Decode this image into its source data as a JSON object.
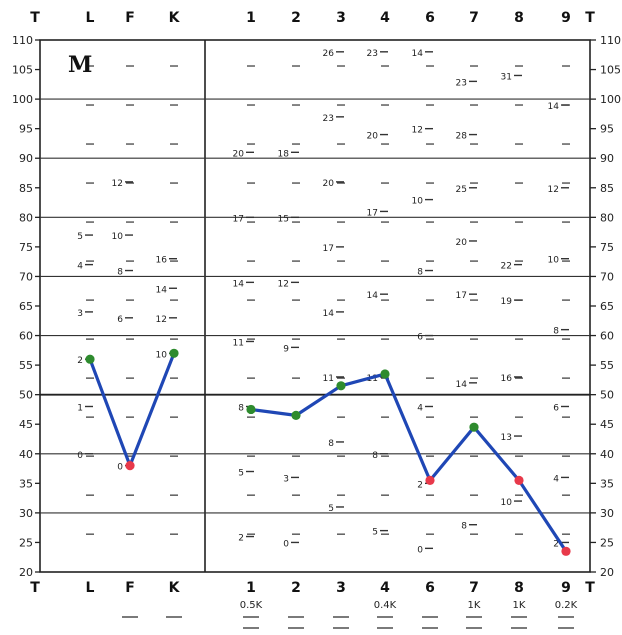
{
  "chart_data": {
    "type": "line",
    "title": "M",
    "y_ticks": [
      "110",
      "105",
      "100",
      "95",
      "90",
      "85",
      "80",
      "75",
      "70",
      "65",
      "60",
      "55",
      "50",
      "45",
      "40",
      "35",
      "30",
      "25",
      "20"
    ],
    "ylim": [
      20,
      110
    ],
    "top_validity_labels": [
      "T",
      "L",
      "F",
      "K"
    ],
    "bottom_validity_labels": [
      "T",
      "L",
      "F",
      "K"
    ],
    "top_clinical_labels": [
      "1",
      "2",
      "3",
      "4",
      "6",
      "7",
      "8",
      "9",
      "T"
    ],
    "bottom_clinical_labels": [
      "1",
      "2",
      "3",
      "4",
      "6",
      "7",
      "8",
      "9",
      "T"
    ],
    "k_corrections": [
      "0.5K",
      "",
      "",
      "0.4K",
      "",
      "1K",
      "1K",
      "0.2K"
    ],
    "validity_series": {
      "categories": [
        "L",
        "F",
        "K"
      ],
      "values": [
        56,
        38,
        57
      ],
      "dot_colors": [
        "#2e8b2e",
        "#e8394a",
        "#2e8b2e"
      ]
    },
    "clinical_series": {
      "categories": [
        "1",
        "2",
        "3",
        "4",
        "6",
        "7",
        "8",
        "9"
      ],
      "values": [
        47.5,
        46.5,
        51.5,
        53.5,
        35.5,
        44.5,
        35.5,
        23.5
      ],
      "dot_colors": [
        "#2e8b2e",
        "#2e8b2e",
        "#2e8b2e",
        "#2e8b2e",
        "#e8394a",
        "#2e8b2e",
        "#e8394a",
        "#e8394a"
      ]
    },
    "raw_score_labels": [
      {
        "col": "L",
        "y": 72,
        "t": "4"
      },
      {
        "col": "L",
        "y": 77,
        "t": "5"
      },
      {
        "col": "L",
        "y": 64,
        "t": "3"
      },
      {
        "col": "L",
        "y": 56,
        "t": "2"
      },
      {
        "col": "L",
        "y": 48,
        "t": "1"
      },
      {
        "col": "L",
        "y": 40,
        "t": "0"
      },
      {
        "col": "F",
        "y": 86,
        "t": "12"
      },
      {
        "col": "F",
        "y": 77,
        "t": "10"
      },
      {
        "col": "F",
        "y": 71,
        "t": "8"
      },
      {
        "col": "F",
        "y": 63,
        "t": "6"
      },
      {
        "col": "F",
        "y": 38,
        "t": "0"
      },
      {
        "col": "K",
        "y": 73,
        "t": "16"
      },
      {
        "col": "K",
        "y": 68,
        "t": "14"
      },
      {
        "col": "K",
        "y": 63,
        "t": "12"
      },
      {
        "col": "K",
        "y": 57,
        "t": "10"
      },
      {
        "col": "1",
        "y": 91,
        "t": "20"
      },
      {
        "col": "1",
        "y": 80,
        "t": "17"
      },
      {
        "col": "1",
        "y": 69,
        "t": "14"
      },
      {
        "col": "1",
        "y": 59,
        "t": "11"
      },
      {
        "col": "1",
        "y": 48,
        "t": "8"
      },
      {
        "col": "1",
        "y": 37,
        "t": "5"
      },
      {
        "col": "1",
        "y": 26,
        "t": "2"
      },
      {
        "col": "2",
        "y": 91,
        "t": "18"
      },
      {
        "col": "2",
        "y": 80,
        "t": "15"
      },
      {
        "col": "2",
        "y": 69,
        "t": "12"
      },
      {
        "col": "2",
        "y": 58,
        "t": "9"
      },
      {
        "col": "2",
        "y": 36,
        "t": "3"
      },
      {
        "col": "2",
        "y": 25,
        "t": "0"
      },
      {
        "col": "3",
        "y": 108,
        "t": "26"
      },
      {
        "col": "3",
        "y": 97,
        "t": "23"
      },
      {
        "col": "3",
        "y": 86,
        "t": "20"
      },
      {
        "col": "3",
        "y": 75,
        "t": "17"
      },
      {
        "col": "3",
        "y": 64,
        "t": "14"
      },
      {
        "col": "3",
        "y": 53,
        "t": "11"
      },
      {
        "col": "3",
        "y": 42,
        "t": "8"
      },
      {
        "col": "3",
        "y": 31,
        "t": "5"
      },
      {
        "col": "4",
        "y": 108,
        "t": "23"
      },
      {
        "col": "4",
        "y": 94,
        "t": "20"
      },
      {
        "col": "4",
        "y": 81,
        "t": "17"
      },
      {
        "col": "4",
        "y": 67,
        "t": "14"
      },
      {
        "col": "4",
        "y": 53,
        "t": "11"
      },
      {
        "col": "4",
        "y": 40,
        "t": "8"
      },
      {
        "col": "4",
        "y": 27,
        "t": "5"
      },
      {
        "col": "6",
        "y": 108,
        "t": "14"
      },
      {
        "col": "6",
        "y": 95,
        "t": "12"
      },
      {
        "col": "6",
        "y": 83,
        "t": "10"
      },
      {
        "col": "6",
        "y": 71,
        "t": "8"
      },
      {
        "col": "6",
        "y": 60,
        "t": "6"
      },
      {
        "col": "6",
        "y": 48,
        "t": "4"
      },
      {
        "col": "6",
        "y": 35,
        "t": "2"
      },
      {
        "col": "6",
        "y": 24,
        "t": "0"
      },
      {
        "col": "7",
        "y": 103,
        "t": "23"
      },
      {
        "col": "7",
        "y": 94,
        "t": "28"
      },
      {
        "col": "7",
        "y": 85,
        "t": "25"
      },
      {
        "col": "7",
        "y": 76,
        "t": "20"
      },
      {
        "col": "7",
        "y": 67,
        "t": "17"
      },
      {
        "col": "7",
        "y": 52,
        "t": "14"
      },
      {
        "col": "7",
        "y": 28,
        "t": "8"
      },
      {
        "col": "8",
        "y": 104,
        "t": "31"
      },
      {
        "col": "8",
        "y": 72,
        "t": "22"
      },
      {
        "col": "8",
        "y": 66,
        "t": "19"
      },
      {
        "col": "8",
        "y": 53,
        "t": "16"
      },
      {
        "col": "8",
        "y": 43,
        "t": "13"
      },
      {
        "col": "8",
        "y": 32,
        "t": "10"
      },
      {
        "col": "9",
        "y": 99,
        "t": "14"
      },
      {
        "col": "9",
        "y": 85,
        "t": "12"
      },
      {
        "col": "9",
        "y": 73,
        "t": "10"
      },
      {
        "col": "9",
        "y": 61,
        "t": "8"
      },
      {
        "col": "9",
        "y": 48,
        "t": "6"
      },
      {
        "col": "9",
        "y": 36,
        "t": "4"
      },
      {
        "col": "9",
        "y": 25,
        "t": "2"
      }
    ],
    "grid": true
  }
}
